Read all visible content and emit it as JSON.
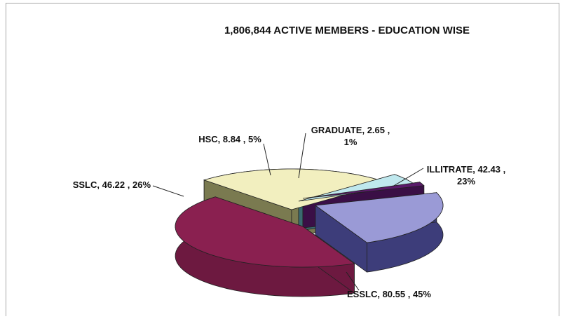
{
  "chart_data": {
    "type": "pie",
    "title": "1,806,844 ACTIVE MEMBERS - EDUCATION WISE",
    "slices": [
      {
        "name": "ILLITRATE",
        "value": 42.43,
        "percent": "23%",
        "label_line1": "ILLITRATE,  42.43 ,",
        "label_line2": "23%",
        "top_color": "#9a9ad6",
        "side_color": "#3d3d7a"
      },
      {
        "name": "ESSLC",
        "value": 80.55,
        "percent": "45%",
        "label_line1": "ESSLC,  80.55 , 45%",
        "label_line2": "",
        "top_color": "#8a2050",
        "side_color": "#6d1940"
      },
      {
        "name": "SSLC",
        "value": 46.22,
        "percent": "26%",
        "label_line1": "SSLC,  46.22 , 26%",
        "label_line2": "",
        "top_color": "#f2efbf",
        "side_color": "#7a7a50"
      },
      {
        "name": "HSC",
        "value": 8.84,
        "percent": "5%",
        "label_line1": "HSC,  8.84 , 5%",
        "label_line2": "",
        "top_color": "#bfe8ee",
        "side_color": "#3a6a70"
      },
      {
        "name": "GRADUATE",
        "value": 2.65,
        "percent": "1%",
        "label_line1": "GRADUATE,  2.65 ,",
        "label_line2": "1%",
        "top_color": "#5a1a6a",
        "side_color": "#3a0f46"
      }
    ],
    "style": "3d-exploded",
    "legend": "none"
  }
}
